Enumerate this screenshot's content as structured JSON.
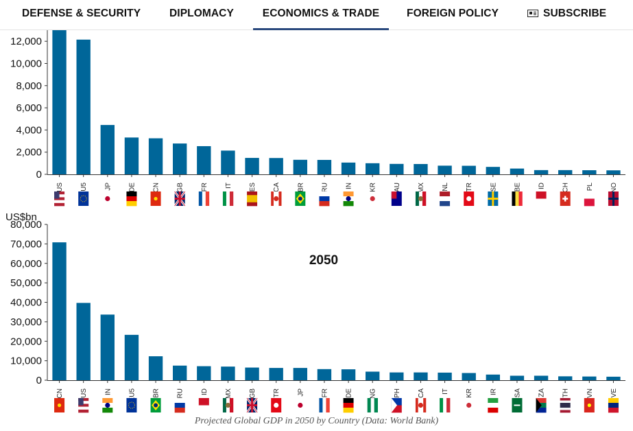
{
  "nav": {
    "items": [
      "DEFENSE & SECURITY",
      "DIPLOMACY",
      "ECONOMICS & TRADE",
      "FOREIGN POLICY"
    ],
    "active_index": 2,
    "subscribe_label": "SUBSCRIBE",
    "subscribe_icon": "newspaper-icon",
    "active_color": "#2b4a7e"
  },
  "caption": "Projected Global GDP in 2050 by Country (Data: World Bank)",
  "bar_color": "#006699",
  "chart_data": [
    {
      "type": "bar",
      "title": "",
      "ylabel": "",
      "ylim": [
        0,
        13000
      ],
      "yticks": [
        0,
        2000,
        4000,
        6000,
        8000,
        10000,
        12000
      ],
      "categories": [
        "US",
        "EU5",
        "JP",
        "DE",
        "CN",
        "GB",
        "FR",
        "IT",
        "ES",
        "CA",
        "BR",
        "RU",
        "IN",
        "KR",
        "AU",
        "MX",
        "NL",
        "TR",
        "SE",
        "BE",
        "ID",
        "CH",
        "PL",
        "NO"
      ],
      "values": [
        13000,
        12150,
        4450,
        3320,
        3250,
        2780,
        2540,
        2140,
        1480,
        1470,
        1310,
        1300,
        1060,
        1000,
        940,
        930,
        780,
        770,
        670,
        520,
        380,
        380,
        370,
        360
      ]
    },
    {
      "type": "bar",
      "title": "2050",
      "ylabel": "US$bn",
      "ylim": [
        0,
        80000
      ],
      "yticks": [
        0,
        10000,
        20000,
        30000,
        40000,
        50000,
        60000,
        70000,
        80000
      ],
      "categories": [
        "CN",
        "US",
        "IN",
        "EU5",
        "BR",
        "RU",
        "ID",
        "MX",
        "GB",
        "TR",
        "JP",
        "FR",
        "DE",
        "NG",
        "PH",
        "CA",
        "IT",
        "KR",
        "IR",
        "SA",
        "ZA",
        "TH",
        "VN",
        "VE"
      ],
      "values": [
        70800,
        39700,
        33700,
        23300,
        12300,
        7500,
        7200,
        7000,
        6500,
        6300,
        6300,
        5700,
        5600,
        4400,
        4000,
        4000,
        3900,
        3700,
        2900,
        2300,
        2300,
        2000,
        1900,
        1800
      ]
    }
  ]
}
